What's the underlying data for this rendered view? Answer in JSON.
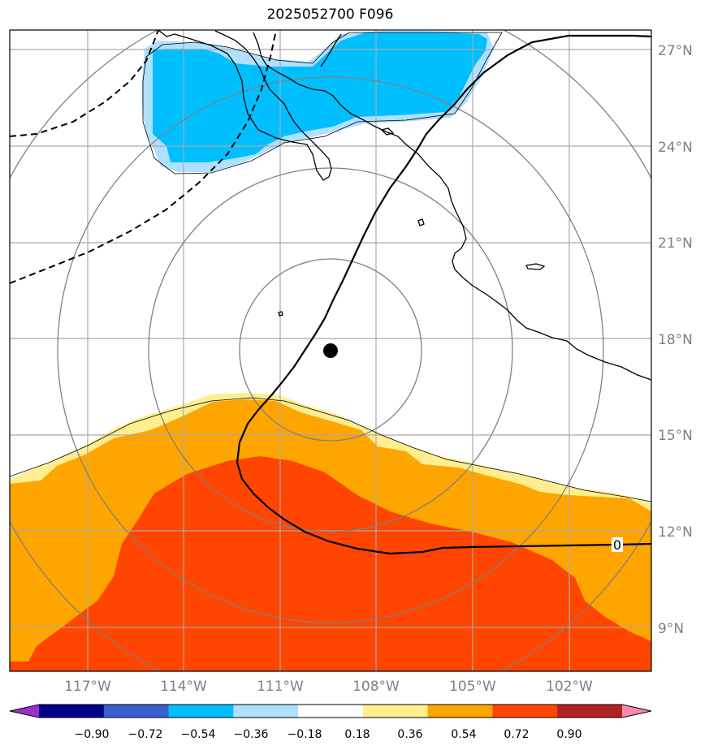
{
  "title": "2025052700 F096",
  "lon_labels": [
    "117°W",
    "114°W",
    "111°W",
    "108°W",
    "105°W",
    "102°W"
  ],
  "lat_labels": [
    "27°N",
    "24°N",
    "21°N",
    "18°N",
    "15°N",
    "12°N",
    "9°N"
  ],
  "contour_label": "0",
  "colorbar": {
    "ticks": [
      "−0.90",
      "−0.72",
      "−0.54",
      "−0.36",
      "−0.18",
      "0.18",
      "0.36",
      "0.54",
      "0.72",
      "0.90"
    ],
    "colors": [
      "#9932cc",
      "#00008b",
      "#3a5fcd",
      "#00bfff",
      "#b0e0ff",
      "#ffffff",
      "#ffee90",
      "#ffa500",
      "#ff4500",
      "#b22222",
      "#ff88b0"
    ]
  },
  "map": {
    "storm_center": {
      "lon": "109.5°W",
      "lat": "17.6°N"
    },
    "colors": {
      "cyan": "#00bfff",
      "lightblue": "#b0e0ff",
      "yellow": "#ffee90",
      "orange": "#ffa500",
      "red": "#ff4500",
      "grid": "#a9a9a9",
      "rings": "#808080"
    }
  }
}
